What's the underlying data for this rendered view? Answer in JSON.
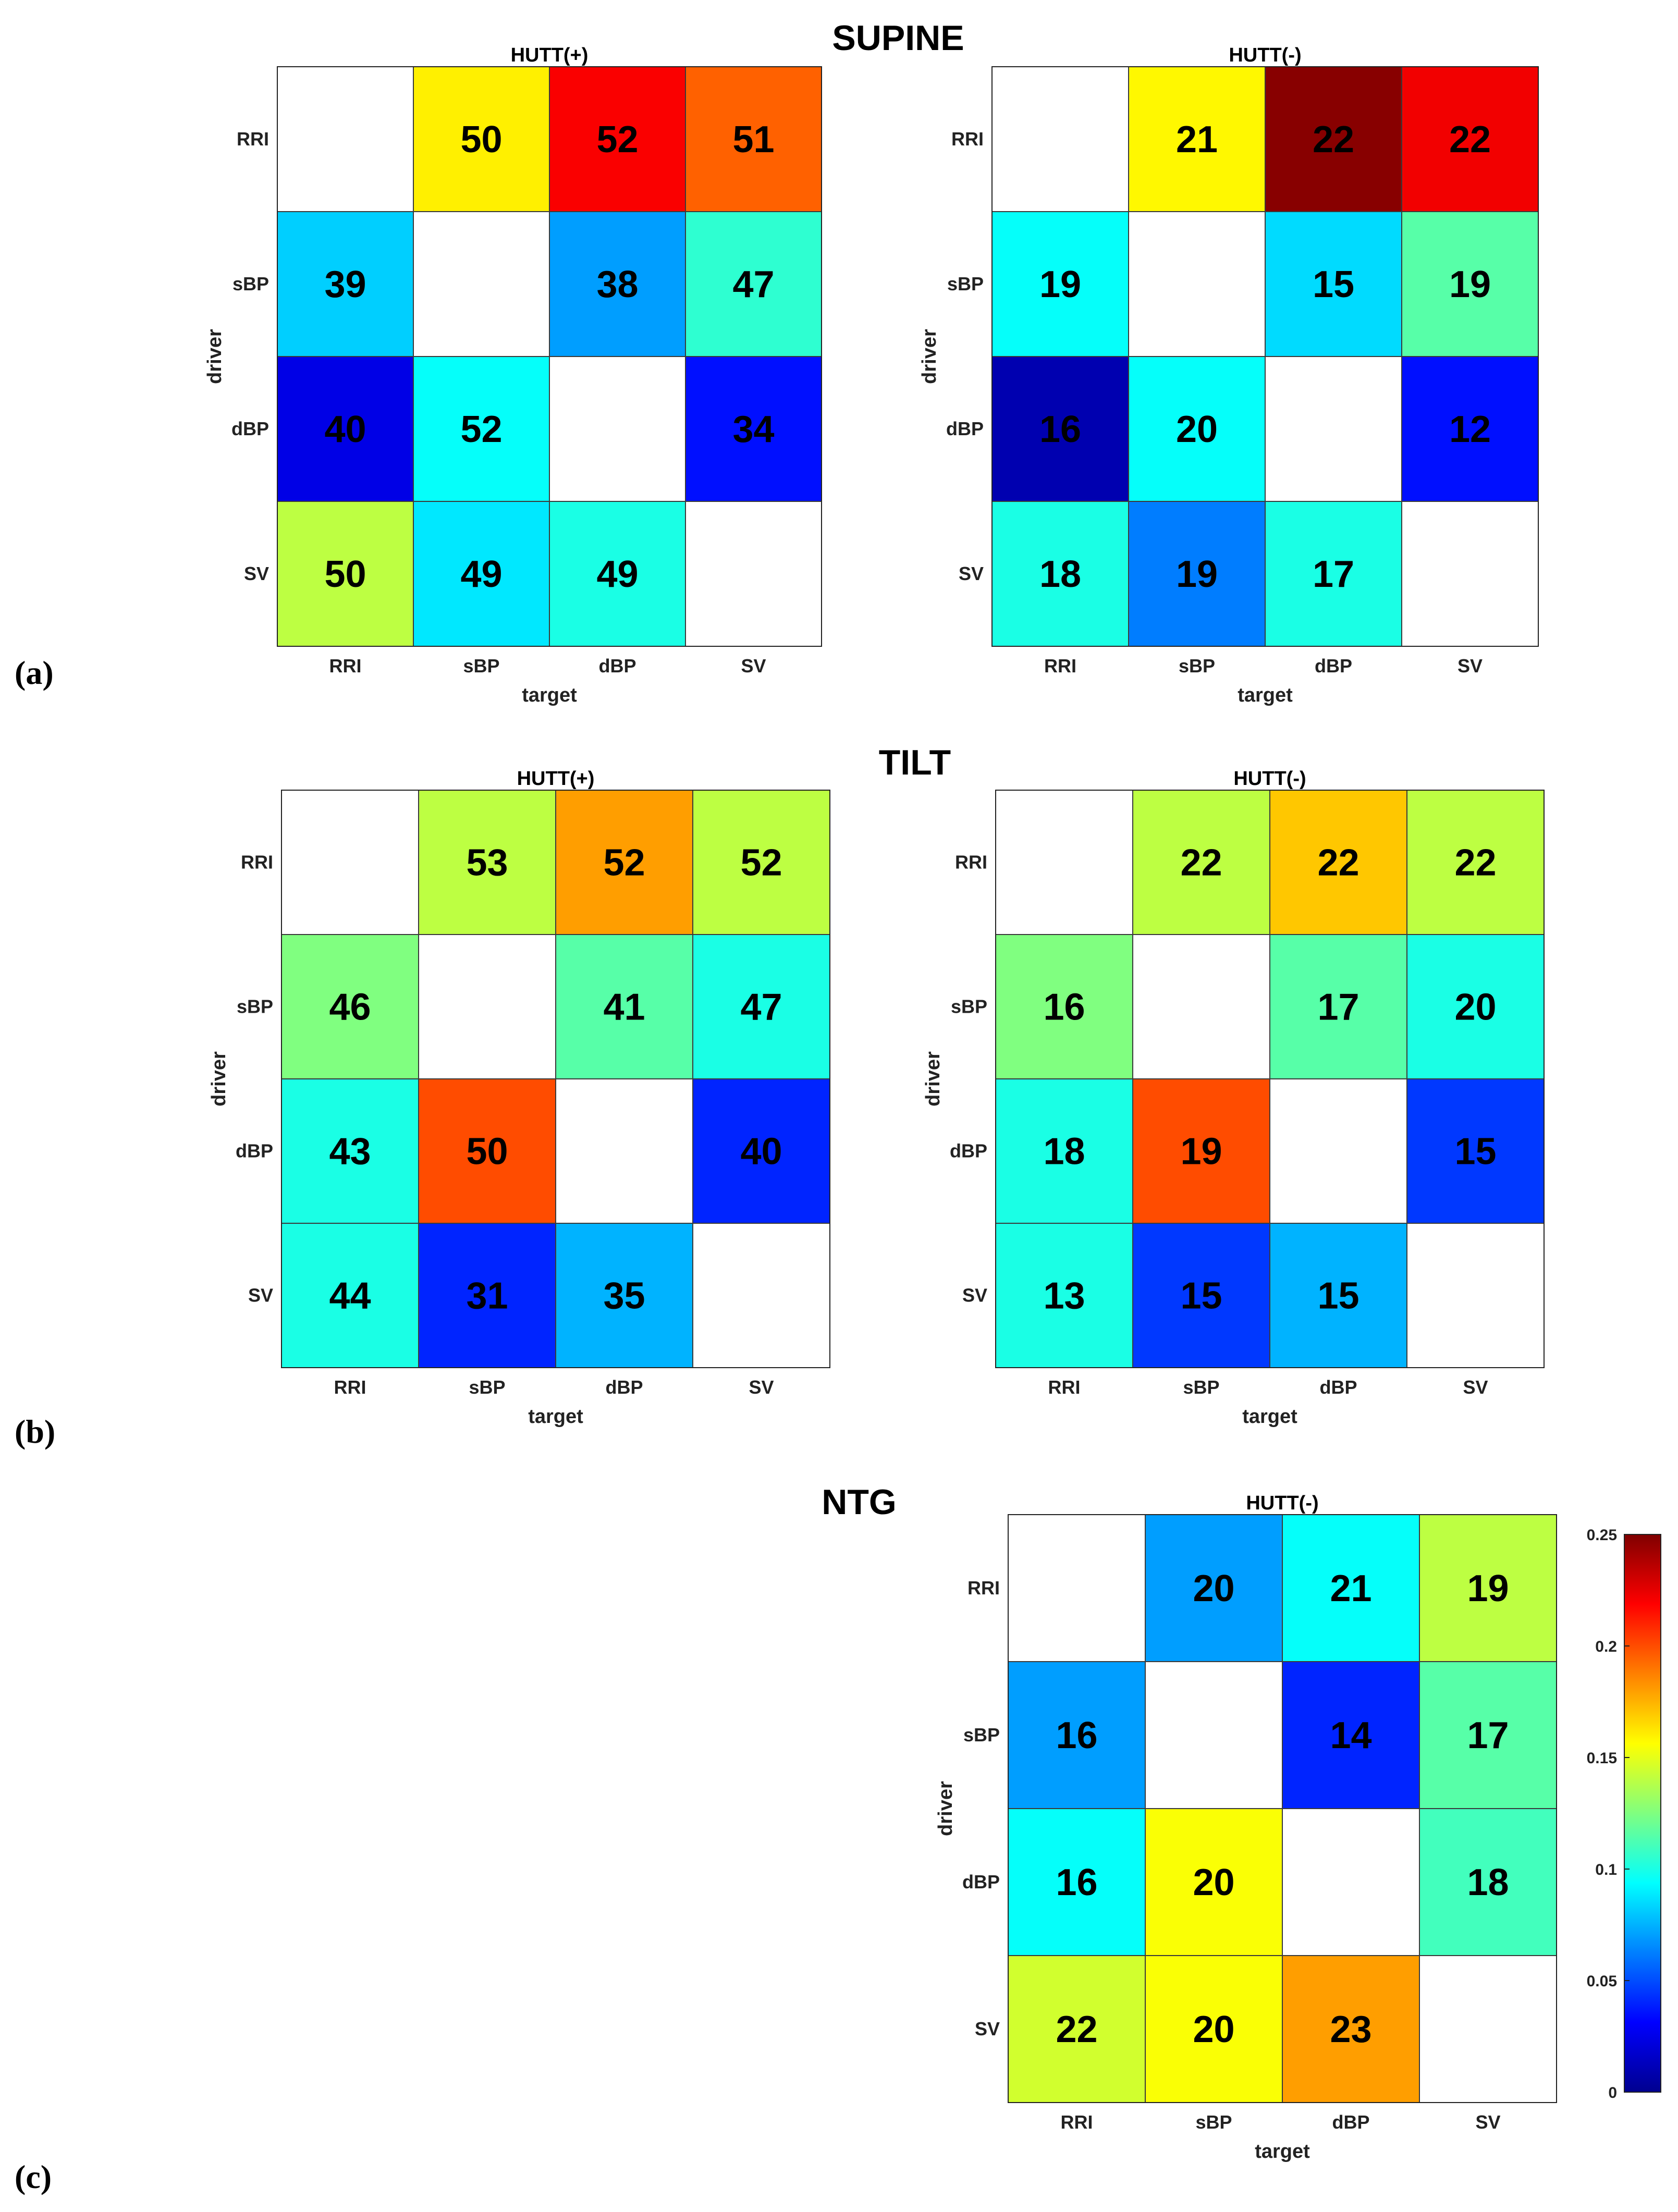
{
  "sections": [
    {
      "key": "supine",
      "title": "SUPINE",
      "label": "(a)"
    },
    {
      "key": "tilt",
      "title": "TILT",
      "label": "(b)"
    },
    {
      "key": "ntg",
      "title": "NTG",
      "label": "(c)"
    }
  ],
  "chart_data": [
    {
      "type": "heatmap",
      "section": "SUPINE",
      "title": "HUTT(+)",
      "xlabel": "target",
      "ylabel": "driver",
      "x_categories": [
        "RRI",
        "sBP",
        "dBP",
        "SV"
      ],
      "y_categories": [
        "RRI",
        "sBP",
        "dBP",
        "SV"
      ],
      "cell_labels": [
        [
          null,
          "50",
          "52",
          "51"
        ],
        [
          "39",
          null,
          "38",
          "47"
        ],
        [
          "40",
          "52",
          null,
          "34"
        ],
        [
          "50",
          "49",
          "49",
          null
        ]
      ],
      "values": [
        [
          null,
          0.16,
          0.22,
          0.195
        ],
        [
          0.082,
          null,
          0.07,
          0.105
        ],
        [
          0.025,
          0.095,
          null,
          0.035
        ],
        [
          0.14,
          0.088,
          0.1,
          null
        ]
      ],
      "colorbar": {
        "min": 0,
        "max": 0.25,
        "colormap": "jet"
      }
    },
    {
      "type": "heatmap",
      "section": "SUPINE",
      "title": "HUTT(-)",
      "xlabel": "target",
      "ylabel": "driver",
      "x_categories": [
        "RRI",
        "sBP",
        "dBP",
        "SV"
      ],
      "y_categories": [
        "RRI",
        "sBP",
        "dBP",
        "SV"
      ],
      "cell_labels": [
        [
          null,
          "21",
          "22",
          "22"
        ],
        [
          "19",
          null,
          "15",
          "19"
        ],
        [
          "16",
          "20",
          null,
          "12"
        ],
        [
          "18",
          "19",
          "17",
          null
        ]
      ],
      "values": [
        [
          null,
          0.158,
          0.248,
          0.222
        ],
        [
          0.095,
          null,
          0.085,
          0.115
        ],
        [
          0.012,
          0.095,
          null,
          0.035
        ],
        [
          0.1,
          0.062,
          0.1,
          null
        ]
      ],
      "colorbar": {
        "min": 0,
        "max": 0.25,
        "colormap": "jet",
        "ticks": [
          "0",
          "0.05",
          "0.1",
          "0.15",
          "0.2",
          "0.25"
        ]
      }
    },
    {
      "type": "heatmap",
      "section": "TILT",
      "title": "HUTT(+)",
      "xlabel": "target",
      "ylabel": "driver",
      "x_categories": [
        "RRI",
        "sBP",
        "dBP",
        "SV"
      ],
      "y_categories": [
        "RRI",
        "sBP",
        "dBP",
        "SV"
      ],
      "cell_labels": [
        [
          null,
          "53",
          "52",
          "52"
        ],
        [
          "46",
          null,
          "41",
          "47"
        ],
        [
          "43",
          "50",
          null,
          "40"
        ],
        [
          "44",
          "31",
          "35",
          null
        ]
      ],
      "values": [
        [
          null,
          0.14,
          0.18,
          0.14
        ],
        [
          0.125,
          null,
          0.115,
          0.1
        ],
        [
          0.1,
          0.2,
          null,
          0.04
        ],
        [
          0.1,
          0.04,
          0.075,
          null
        ]
      ],
      "colorbar": {
        "min": 0,
        "max": 0.25,
        "colormap": "jet"
      }
    },
    {
      "type": "heatmap",
      "section": "TILT",
      "title": "HUTT(-)",
      "xlabel": "target",
      "ylabel": "driver",
      "x_categories": [
        "RRI",
        "sBP",
        "dBP",
        "SV"
      ],
      "y_categories": [
        "RRI",
        "sBP",
        "dBP",
        "SV"
      ],
      "cell_labels": [
        [
          null,
          "22",
          "22",
          "22"
        ],
        [
          "16",
          null,
          "17",
          "20"
        ],
        [
          "18",
          "19",
          null,
          "15"
        ],
        [
          "13",
          "15",
          "15",
          null
        ]
      ],
      "values": [
        [
          null,
          0.14,
          0.17,
          0.14
        ],
        [
          0.125,
          null,
          0.115,
          0.1
        ],
        [
          0.1,
          0.2,
          null,
          0.045
        ],
        [
          0.1,
          0.045,
          0.075,
          null
        ]
      ],
      "colorbar": {
        "min": 0,
        "max": 0.25,
        "colormap": "jet",
        "ticks": [
          "0",
          "0.05",
          "0.1",
          "0.15",
          "0.2",
          "0.25"
        ]
      }
    },
    {
      "type": "heatmap",
      "section": "NTG",
      "title": "HUTT(-)",
      "xlabel": "target",
      "ylabel": "driver",
      "x_categories": [
        "RRI",
        "sBP",
        "dBP",
        "SV"
      ],
      "y_categories": [
        "RRI",
        "sBP",
        "dBP",
        "SV"
      ],
      "cell_labels": [
        [
          null,
          "20",
          "21",
          "19"
        ],
        [
          "16",
          null,
          "14",
          "17"
        ],
        [
          "16",
          "20",
          null,
          "18"
        ],
        [
          "22",
          "20",
          "23",
          null
        ]
      ],
      "values": [
        [
          null,
          0.07,
          0.095,
          0.14
        ],
        [
          0.07,
          null,
          0.04,
          0.115
        ],
        [
          0.095,
          0.155,
          null,
          0.11
        ],
        [
          0.145,
          0.155,
          0.18,
          null
        ]
      ],
      "colorbar": {
        "min": 0,
        "max": 0.25,
        "colormap": "jet",
        "ticks": [
          "0",
          "0.05",
          "0.1",
          "0.15",
          "0.2",
          "0.25"
        ]
      }
    }
  ]
}
